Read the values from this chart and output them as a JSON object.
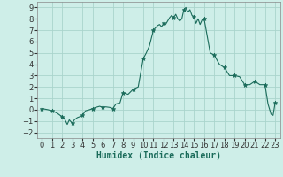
{
  "x": [
    0,
    0.3,
    0.6,
    1.0,
    1.5,
    1.8,
    2.0,
    2.2,
    2.5,
    2.7,
    2.9,
    3.0,
    3.2,
    3.5,
    3.8,
    4.0,
    4.3,
    4.7,
    5.0,
    5.3,
    5.7,
    6.0,
    6.3,
    6.7,
    7.0,
    7.3,
    7.7,
    8.0,
    8.5,
    9.0,
    9.5,
    10.0,
    10.3,
    10.6,
    11.0,
    11.2,
    11.4,
    11.6,
    11.8,
    12.0,
    12.2,
    12.4,
    12.6,
    12.8,
    13.0,
    13.2,
    13.4,
    13.6,
    13.8,
    14.0,
    14.2,
    14.4,
    14.6,
    14.8,
    15.0,
    15.2,
    15.4,
    15.6,
    15.8,
    16.0,
    16.3,
    16.6,
    17.0,
    17.5,
    18.0,
    18.5,
    19.0,
    19.5,
    20.0,
    20.5,
    21.0,
    21.5,
    22.0,
    22.3,
    22.6,
    22.8,
    23.0
  ],
  "y": [
    0.1,
    0.05,
    0.0,
    -0.1,
    -0.3,
    -0.5,
    -0.6,
    -0.75,
    -1.3,
    -0.9,
    -1.1,
    -1.2,
    -0.9,
    -0.7,
    -0.6,
    -0.5,
    -0.1,
    0.0,
    0.1,
    0.2,
    0.3,
    0.2,
    0.25,
    0.2,
    0.1,
    0.5,
    0.6,
    1.5,
    1.35,
    1.8,
    2.0,
    4.5,
    5.0,
    5.6,
    7.0,
    7.2,
    7.4,
    7.5,
    7.3,
    7.6,
    7.5,
    7.8,
    8.1,
    8.3,
    8.1,
    8.4,
    8.0,
    7.8,
    8.0,
    8.8,
    9.0,
    8.6,
    8.8,
    8.3,
    8.2,
    7.6,
    8.0,
    7.5,
    7.9,
    8.0,
    6.5,
    5.0,
    4.8,
    4.0,
    3.7,
    3.0,
    3.0,
    2.9,
    2.2,
    2.2,
    2.5,
    2.2,
    2.2,
    0.5,
    -0.4,
    -0.5,
    0.6
  ],
  "marker_x": [
    0,
    1,
    2,
    3,
    4,
    5,
    6,
    7,
    8,
    9,
    10,
    11,
    12,
    13,
    14,
    15,
    16,
    17,
    18,
    19,
    20,
    21,
    22,
    23
  ],
  "marker_y": [
    0.1,
    -0.1,
    -0.6,
    -1.2,
    -0.5,
    0.1,
    0.2,
    0.1,
    1.5,
    1.8,
    4.5,
    7.0,
    7.6,
    8.1,
    8.8,
    8.2,
    8.0,
    4.8,
    3.7,
    3.0,
    2.2,
    2.5,
    2.2,
    0.6
  ],
  "line_color": "#1a6b5a",
  "bg_color": "#ceeee8",
  "grid_color": "#aad4cc",
  "xlabel": "Humidex (Indice chaleur)",
  "ylim": [
    -2.5,
    9.5
  ],
  "xlim": [
    -0.5,
    23.5
  ],
  "yticks": [
    -2,
    -1,
    0,
    1,
    2,
    3,
    4,
    5,
    6,
    7,
    8,
    9
  ],
  "xticks": [
    0,
    1,
    2,
    3,
    4,
    5,
    6,
    7,
    8,
    9,
    10,
    11,
    12,
    13,
    14,
    15,
    16,
    17,
    18,
    19,
    20,
    21,
    22,
    23
  ],
  "tick_fontsize": 6.0,
  "xlabel_fontsize": 7.0
}
